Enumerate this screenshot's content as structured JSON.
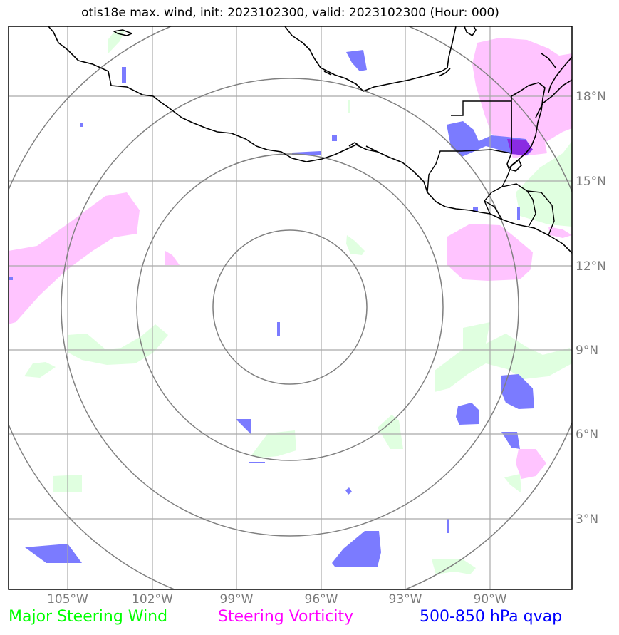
{
  "title": "otis18e max. wind, init: 2023102300, valid: 2023102300 (Hour: 000)",
  "lon_labels": [
    "105°W",
    "102°W",
    "99°W",
    "96°W",
    "93°W",
    "90°W"
  ],
  "lat_labels": [
    "18°N",
    "15°N",
    "12°N",
    "9°N",
    "6°N",
    "3°N"
  ],
  "legend": {
    "wind": {
      "label": "Major Steering Wind",
      "color": "#00ff00"
    },
    "vorticity": {
      "label": "Steering Vorticity",
      "color": "#ff00ff"
    },
    "qvap": {
      "label": "500-850 hPa qvap",
      "color": "#0000ff"
    }
  },
  "colors": {
    "wind_fill": "#e0ffe0",
    "vorticity_fill": "#ffc4ff",
    "qvap_fill": "#7b7bff",
    "grid": "#a9a9a9",
    "rings": "#808080",
    "coast": "#000000"
  }
}
